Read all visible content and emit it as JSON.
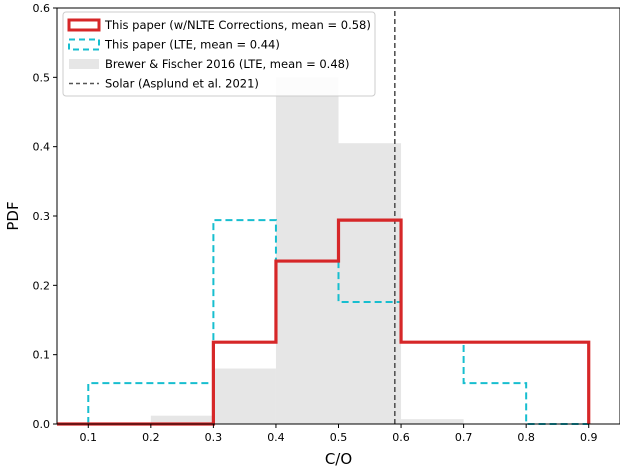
{
  "chart_data": {
    "type": "histogram",
    "xlabel": "C/O",
    "ylabel": "PDF",
    "xlim": [
      0.05,
      0.95
    ],
    "ylim": [
      0.0,
      0.6
    ],
    "xticks": [
      "0.1",
      "0.2",
      "0.3",
      "0.4",
      "0.5",
      "0.6",
      "0.7",
      "0.8",
      "0.9"
    ],
    "yticks": [
      "0.0",
      "0.1",
      "0.2",
      "0.3",
      "0.4",
      "0.5",
      "0.6"
    ],
    "grid": false,
    "legend_position": "top-left",
    "series": [
      {
        "name": "Brewer & Fischer 2016 (LTE, mean = 0.48)",
        "style": "filled",
        "color": "#e6e6e6",
        "bins": [
          {
            "x0": 0.2,
            "x1": 0.3,
            "value": 0.012
          },
          {
            "x0": 0.3,
            "x1": 0.4,
            "value": 0.08
          },
          {
            "x0": 0.4,
            "x1": 0.5,
            "value": 0.5
          },
          {
            "x0": 0.5,
            "x1": 0.6,
            "value": 0.405
          },
          {
            "x0": 0.6,
            "x1": 0.7,
            "value": 0.007
          }
        ]
      },
      {
        "name": "This paper (LTE, mean = 0.44)",
        "style": "dashed-step",
        "color": "#17becf",
        "bins": [
          {
            "x0": 0.1,
            "x1": 0.2,
            "value": 0.059
          },
          {
            "x0": 0.2,
            "x1": 0.3,
            "value": 0.059
          },
          {
            "x0": 0.3,
            "x1": 0.4,
            "value": 0.294
          },
          {
            "x0": 0.4,
            "x1": 0.5,
            "value": 0.235
          },
          {
            "x0": 0.5,
            "x1": 0.6,
            "value": 0.176
          },
          {
            "x0": 0.6,
            "x1": 0.7,
            "value": 0.118
          },
          {
            "x0": 0.7,
            "x1": 0.8,
            "value": 0.059
          },
          {
            "x0": 0.8,
            "x1": 0.9,
            "value": 0.0
          }
        ]
      },
      {
        "name": "This paper (w/NLTE Corrections, mean = 0.58)",
        "style": "solid-step",
        "color": "#d62728",
        "bins": [
          {
            "x0": 0.05,
            "x1": 0.1,
            "value": 0.0
          },
          {
            "x0": 0.1,
            "x1": 0.2,
            "value": 0.0
          },
          {
            "x0": 0.2,
            "x1": 0.3,
            "value": 0.0
          },
          {
            "x0": 0.3,
            "x1": 0.4,
            "value": 0.118
          },
          {
            "x0": 0.4,
            "x1": 0.5,
            "value": 0.235
          },
          {
            "x0": 0.5,
            "x1": 0.6,
            "value": 0.294
          },
          {
            "x0": 0.6,
            "x1": 0.7,
            "value": 0.118
          },
          {
            "x0": 0.7,
            "x1": 0.8,
            "value": 0.118
          },
          {
            "x0": 0.8,
            "x1": 0.9,
            "value": 0.118
          }
        ]
      },
      {
        "name": "Solar (Asplund et al. 2021)",
        "style": "vline-dashed",
        "color": "#555555",
        "x": 0.59
      }
    ],
    "legend": [
      "This paper (w/NLTE Corrections, mean = 0.58)",
      "This paper (LTE, mean = 0.44)",
      "Brewer & Fischer 2016 (LTE, mean = 0.48)",
      "Solar (Asplund et al. 2021)"
    ]
  }
}
